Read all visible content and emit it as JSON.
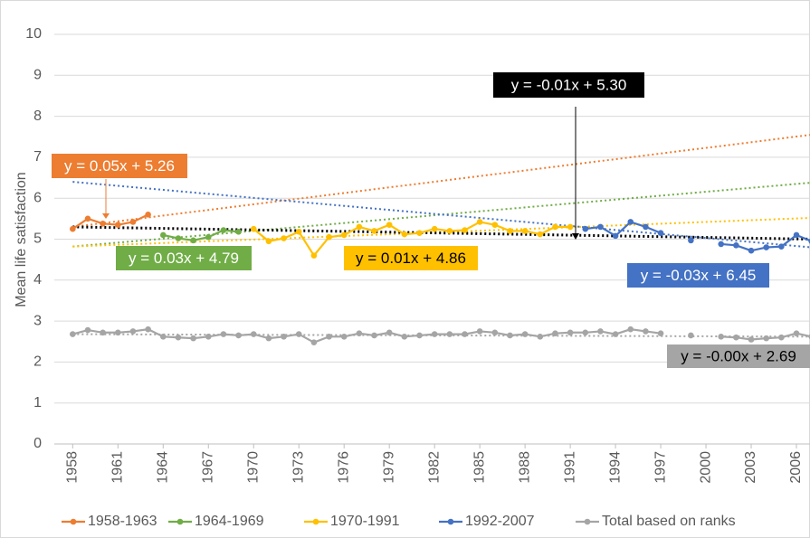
{
  "chart_data": {
    "type": "line",
    "y_label": "Mean life satisfaction",
    "x": [
      1958,
      1959,
      1960,
      1961,
      1962,
      1963,
      1964,
      1965,
      1966,
      1967,
      1968,
      1969,
      1970,
      1971,
      1972,
      1973,
      1974,
      1975,
      1976,
      1977,
      1978,
      1979,
      1980,
      1981,
      1982,
      1983,
      1984,
      1985,
      1986,
      1987,
      1988,
      1989,
      1990,
      1991,
      1992,
      1993,
      1994,
      1995,
      1996,
      1997,
      1998,
      1999,
      2000,
      2001,
      2002,
      2003,
      2004,
      2005,
      2006,
      2007
    ],
    "series": [
      {
        "name": "1958-1963",
        "color": "#ed7d31",
        "values": [
          5.25,
          5.5,
          5.38,
          5.35,
          5.42,
          5.6,
          null,
          null,
          null,
          null,
          null,
          null,
          null,
          null,
          null,
          null,
          null,
          null,
          null,
          null,
          null,
          null,
          null,
          null,
          null,
          null,
          null,
          null,
          null,
          null,
          null,
          null,
          null,
          null,
          null,
          null,
          null,
          null,
          null,
          null,
          null,
          null,
          null,
          null,
          null,
          null,
          null,
          null,
          null,
          null
        ]
      },
      {
        "name": "1964-1969",
        "color": "#70ad47",
        "values": [
          null,
          null,
          null,
          null,
          null,
          null,
          5.1,
          5.02,
          4.97,
          5.05,
          5.22,
          5.18,
          null,
          null,
          null,
          null,
          null,
          null,
          null,
          null,
          null,
          null,
          null,
          null,
          null,
          null,
          null,
          null,
          null,
          null,
          null,
          null,
          null,
          null,
          null,
          null,
          null,
          null,
          null,
          null,
          null,
          null,
          null,
          null,
          null,
          null,
          null,
          null,
          null,
          null
        ]
      },
      {
        "name": "1970-1991",
        "color": "#ffc000",
        "values": [
          null,
          null,
          null,
          null,
          null,
          null,
          null,
          null,
          null,
          null,
          null,
          null,
          5.25,
          4.95,
          5.02,
          5.18,
          4.6,
          5.05,
          5.1,
          5.3,
          5.2,
          5.35,
          5.12,
          5.15,
          5.25,
          5.2,
          5.22,
          5.42,
          5.35,
          5.2,
          5.2,
          5.12,
          5.3,
          5.3,
          null,
          null,
          null,
          null,
          null,
          null,
          null,
          null,
          null,
          null,
          null,
          null,
          null,
          null,
          null,
          null
        ]
      },
      {
        "name": "1992-2007",
        "color": "#4472c4",
        "values": [
          null,
          null,
          null,
          null,
          null,
          null,
          null,
          null,
          null,
          null,
          null,
          null,
          null,
          null,
          null,
          null,
          null,
          null,
          null,
          null,
          null,
          null,
          null,
          null,
          null,
          null,
          null,
          null,
          null,
          null,
          null,
          null,
          null,
          null,
          5.25,
          5.3,
          5.08,
          5.42,
          5.3,
          5.15,
          null,
          4.97,
          null,
          4.88,
          4.85,
          4.72,
          4.8,
          4.82,
          5.1,
          4.95
        ]
      },
      {
        "name": "Total based on ranks",
        "color": "#a5a5a5",
        "values": [
          2.68,
          2.78,
          2.72,
          2.72,
          2.75,
          2.8,
          2.62,
          2.6,
          2.58,
          2.62,
          2.68,
          2.65,
          2.68,
          2.58,
          2.62,
          2.68,
          2.48,
          2.62,
          2.62,
          2.7,
          2.65,
          2.72,
          2.62,
          2.65,
          2.68,
          2.68,
          2.68,
          2.75,
          2.72,
          2.65,
          2.68,
          2.62,
          2.7,
          2.72,
          2.72,
          2.75,
          2.68,
          2.8,
          2.75,
          2.7,
          null,
          2.65,
          null,
          2.62,
          2.6,
          2.55,
          2.58,
          2.6,
          2.7,
          2.62
        ]
      }
    ],
    "trendlines": [
      {
        "color": "#ed7d31",
        "x": [
          1958,
          2007
        ],
        "values": [
          5.3,
          7.55
        ]
      },
      {
        "color": "#70ad47",
        "x": [
          1958,
          2007
        ],
        "values": [
          4.82,
          6.38
        ]
      },
      {
        "color": "#ffc000",
        "x": [
          1958,
          2007
        ],
        "values": [
          4.82,
          5.52
        ]
      },
      {
        "color": "#4472c4",
        "x": [
          1958,
          2007
        ],
        "values": [
          6.4,
          4.8
        ]
      },
      {
        "color": "#000000",
        "x": [
          1958,
          2007
        ],
        "values": [
          5.3,
          5.0
        ]
      },
      {
        "color": "#a5a5a5",
        "x": [
          1958,
          2007
        ],
        "values": [
          2.68,
          2.62
        ]
      }
    ],
    "annotations": [
      {
        "text": "y = 0.05x + 5.26",
        "color": "#ed7d31"
      },
      {
        "text": "y = 0.03x + 4.79",
        "color": "#70ad47"
      },
      {
        "text": "y = 0.01x + 4.86",
        "color": "#ffc000"
      },
      {
        "text": "y = -0.03x + 6.45",
        "color": "#4472c4"
      },
      {
        "text": "y = -0.01x + 5.30",
        "color": "#000000"
      },
      {
        "text": "y = -0.00x + 2.69",
        "color": "#a5a5a5"
      }
    ],
    "xlim": [
      1957.5,
      2006.9
    ],
    "xticks": [
      1958,
      1961,
      1964,
      1967,
      1970,
      1973,
      1976,
      1979,
      1982,
      1985,
      1988,
      1991,
      1994,
      1997,
      2000,
      2003,
      2006
    ],
    "ylim": [
      0,
      10
    ],
    "yticks": [
      0,
      1,
      2,
      3,
      4,
      5,
      6,
      7,
      8,
      9,
      10
    ],
    "grid": true,
    "legend": "bottom"
  }
}
